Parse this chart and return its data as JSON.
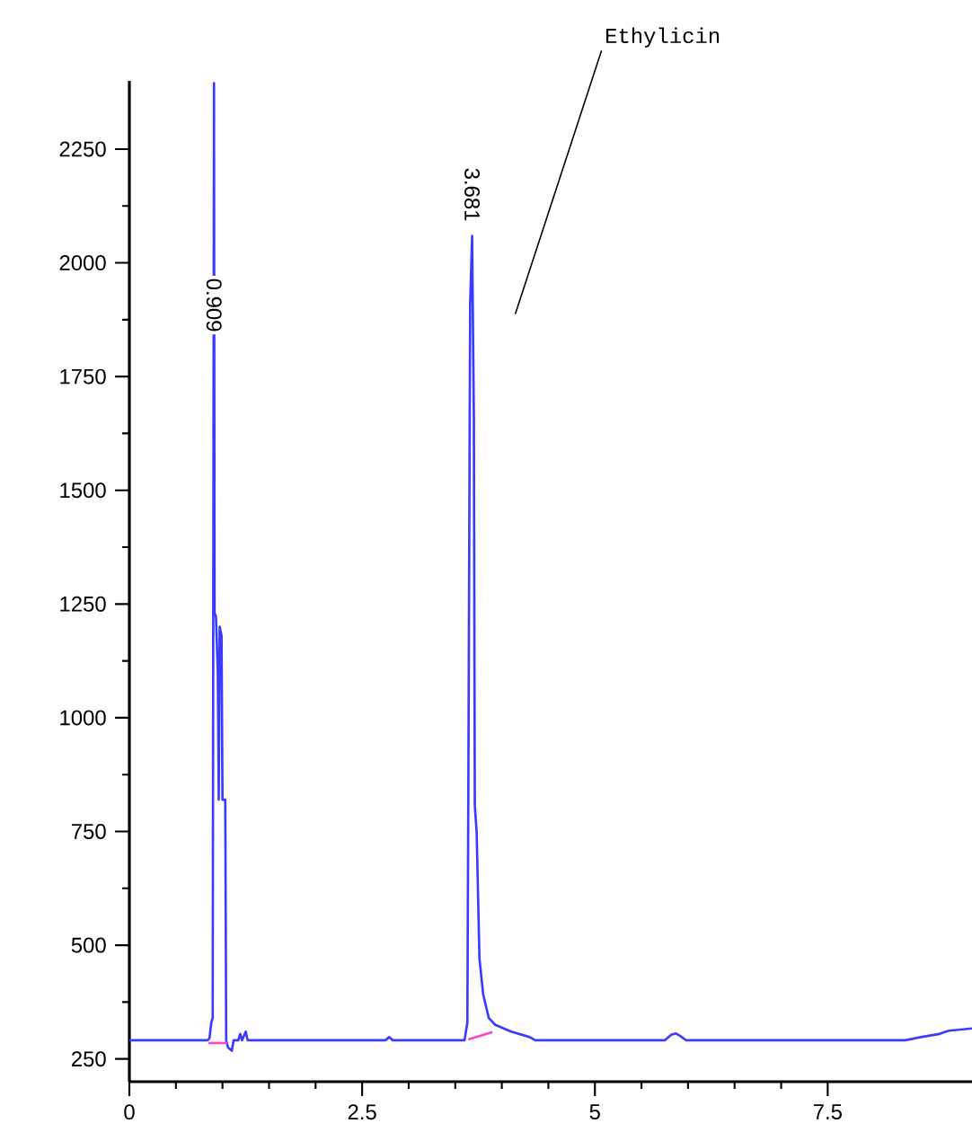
{
  "chart_data": {
    "type": "line",
    "xlim": [
      0,
      9.05
    ],
    "ylim": [
      200,
      2400
    ],
    "xticks": [
      0,
      2.5,
      5,
      7.5
    ],
    "yticks": [
      250,
      500,
      750,
      1000,
      1250,
      1500,
      1750,
      2000,
      2250
    ],
    "series": [
      {
        "color": "#3b3bff",
        "x": [
          0,
          0.84,
          0.86,
          0.88,
          0.895,
          0.909,
          0.915,
          0.93,
          0.95,
          0.96,
          0.97,
          0.99,
          1.0,
          1.03,
          1.04,
          1.06,
          1.1,
          1.12,
          1.17,
          1.19,
          1.21,
          1.25,
          1.27,
          2.75,
          2.79,
          2.83,
          3.6,
          3.63,
          3.64,
          3.66,
          3.681,
          3.7,
          3.71,
          3.73,
          3.76,
          3.8,
          3.86,
          3.93,
          4.1,
          4.3,
          4.36,
          5.75,
          5.82,
          5.87,
          5.92,
          5.98,
          8.33,
          8.5,
          8.7,
          8.8,
          9.05
        ],
        "values": [
          291,
          291,
          295,
          330,
          340,
          2395,
          1230,
          1223,
          1100,
          820,
          1200,
          1180,
          820,
          820,
          290,
          275,
          268,
          291,
          291,
          305,
          291,
          310,
          291,
          291,
          298,
          291,
          291,
          330,
          808,
          1907,
          2059,
          1658,
          808,
          748,
          471,
          392,
          340,
          325,
          310,
          298,
          291,
          291,
          303,
          306,
          300,
          291,
          291,
          298,
          305,
          312,
          317
        ]
      },
      {
        "color": "#ff44cc",
        "x": [
          0.85,
          1.05
        ],
        "values": [
          285,
          285
        ]
      },
      {
        "color": "#ff44cc",
        "x": [
          3.64,
          3.9
        ],
        "values": [
          293,
          309
        ]
      }
    ],
    "annotations": [
      {
        "text": "0.909",
        "x": 0.909,
        "y": 1907
      },
      {
        "text": "3.681",
        "x": 3.681,
        "y": 2150
      },
      "Ethylicin"
    ]
  }
}
